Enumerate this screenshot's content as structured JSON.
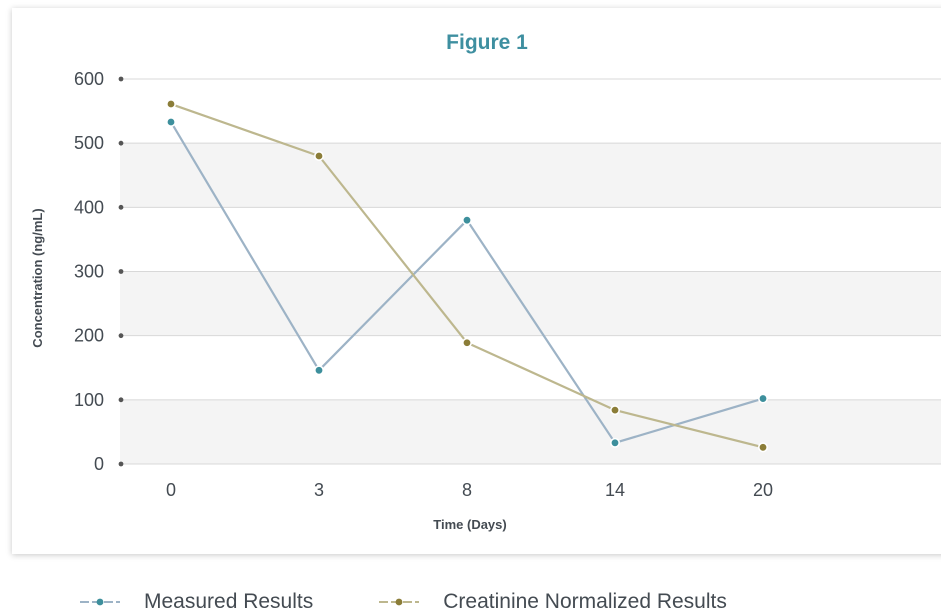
{
  "chart_data": {
    "type": "line",
    "title": "Figure 1",
    "xlabel": "Time (Days)",
    "ylabel": "Concentration (ng/mL)",
    "categories": [
      "0",
      "3",
      "8",
      "14",
      "20"
    ],
    "yticks": [
      "0",
      "100",
      "200",
      "300",
      "400",
      "500",
      "600"
    ],
    "ylim": [
      0,
      600
    ],
    "grid": true,
    "legend_position": "bottom",
    "series": [
      {
        "name": "Measured Results",
        "values": [
          533,
          146,
          380,
          33,
          102
        ],
        "color": "#9db3c6",
        "marker_color": "#3d8f9c"
      },
      {
        "name": "Creatinine Normalized Results",
        "values": [
          561,
          480,
          189,
          84,
          26
        ],
        "color": "#bdb78e",
        "marker_color": "#8b7d38"
      }
    ],
    "colors": {
      "title": "#3e8fa0",
      "band": "#f4f4f4",
      "gridline": "#d8d8d8",
      "text": "#444b52"
    }
  }
}
